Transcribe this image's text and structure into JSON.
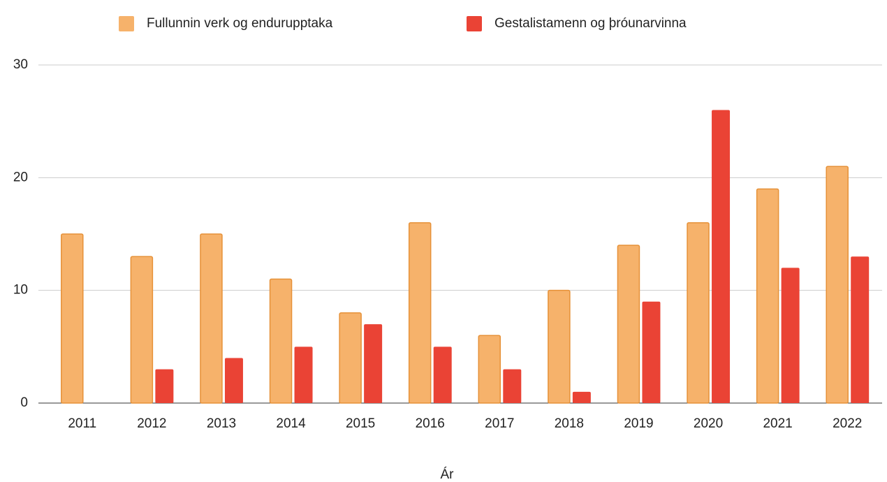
{
  "chart_data": {
    "type": "bar",
    "categories": [
      "2011",
      "2012",
      "2013",
      "2014",
      "2015",
      "2016",
      "2017",
      "2018",
      "2019",
      "2020",
      "2021",
      "2022"
    ],
    "series": [
      {
        "name": "Fullunnin verk og endurupptaka",
        "color": "#f6b26b",
        "values": [
          15,
          13,
          15,
          11,
          8,
          16,
          6,
          10,
          14,
          16,
          19,
          21
        ]
      },
      {
        "name": "Gestalistamenn og þróunarvinna",
        "color": "#ea4335",
        "values": [
          0,
          3,
          4,
          5,
          7,
          5,
          3,
          1,
          9,
          26,
          12,
          13
        ]
      }
    ],
    "x_label": "Ár",
    "ylim": [
      0,
      30
    ],
    "yticks": [
      0,
      10,
      20,
      30
    ],
    "grid": true,
    "legend": "top"
  }
}
